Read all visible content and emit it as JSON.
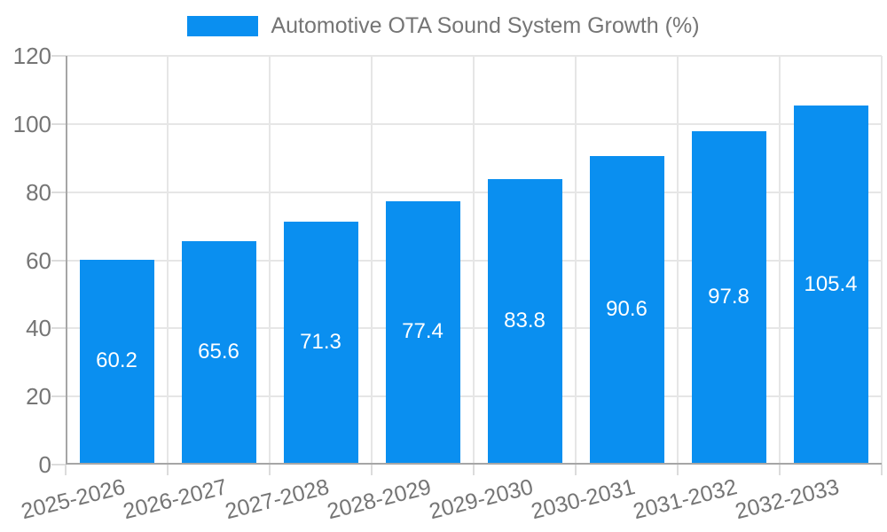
{
  "chart_data": {
    "type": "bar",
    "title": "Automotive OTA Sound System Growth (%)",
    "categories": [
      "2025-2026",
      "2026-2027",
      "2027-2028",
      "2028-2029",
      "2029-2030",
      "2030-2031",
      "2031-2032",
      "2032-2033"
    ],
    "series": [
      {
        "name": "Automotive OTA Sound System Growth (%)",
        "values": [
          60.2,
          65.6,
          71.3,
          77.4,
          83.8,
          90.6,
          97.8,
          105.4
        ]
      }
    ],
    "value_labels": [
      "60.2",
      "65.6",
      "71.3",
      "77.4",
      "83.8",
      "90.6",
      "97.8",
      "105.4"
    ],
    "xlabel": "",
    "ylabel": "",
    "ylim": [
      0,
      120
    ],
    "yticks": [
      0,
      20,
      40,
      60,
      80,
      100,
      120
    ],
    "grid": "both",
    "legend_position": "top-center",
    "colors": {
      "bar": "#0a8ff0",
      "text": "#757575",
      "value_label": "#ffffff",
      "gridline": "#e6e6e6",
      "axis_line": "#a6a6a6",
      "tick": "#dcdcdc",
      "background": "#ffffff"
    }
  },
  "legend": {
    "label": "Automotive OTA Sound System Growth (%)"
  }
}
